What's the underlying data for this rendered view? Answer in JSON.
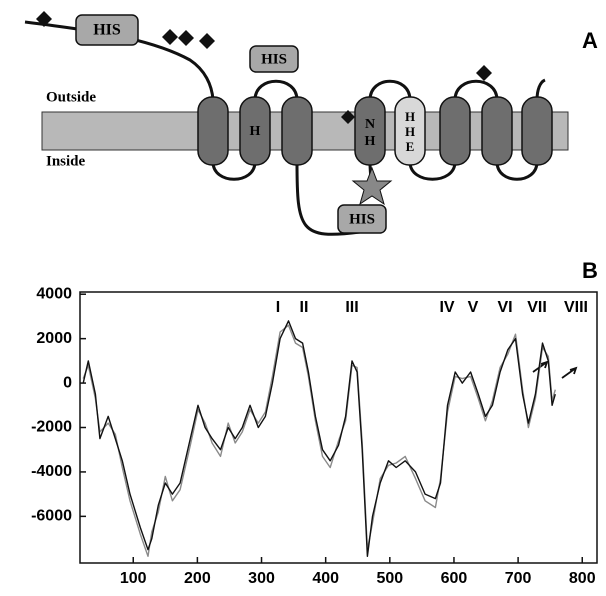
{
  "panel_a": {
    "label": "A",
    "outside": "Outside",
    "inside": "Inside",
    "his_top": "HIS",
    "his_middle": "HIS",
    "his_bottom": "HIS",
    "helix_2": "H",
    "helix_4": [
      "N",
      "H"
    ],
    "helix_5": [
      "H",
      "H",
      "E"
    ]
  },
  "chart_data": {
    "type": "line",
    "label": "B",
    "annotations": [
      "I",
      "II",
      "III",
      "IV",
      "V",
      "VI",
      "VII",
      "VIII"
    ],
    "x": [
      22,
      30,
      41,
      48,
      61,
      72,
      83,
      95,
      111,
      123,
      129,
      139,
      150,
      161,
      173,
      189,
      201,
      212,
      223,
      236,
      248,
      259,
      270,
      282,
      295,
      306,
      317,
      329,
      342,
      353,
      364,
      373,
      384,
      395,
      407,
      420,
      431,
      441,
      449,
      457,
      465,
      473,
      485,
      498,
      510,
      524,
      540,
      555,
      571,
      579,
      590,
      602,
      613,
      626,
      638,
      649,
      660,
      672,
      684,
      696,
      707,
      716,
      727,
      738,
      747,
      753,
      758
    ],
    "series": [
      {
        "color": "#111111",
        "values": [
          0,
          1000,
          -500,
          -2500,
          -1500,
          -2500,
          -3500,
          -5000,
          -6500,
          -7500,
          -7000,
          -5500,
          -4500,
          -5000,
          -4500,
          -2500,
          -1000,
          -2000,
          -2500,
          -3000,
          -2000,
          -2500,
          -2000,
          -1000,
          -2000,
          -1500,
          0,
          2000,
          2800,
          2000,
          1800,
          500,
          -1500,
          -3000,
          -3500,
          -2800,
          -1500,
          1000,
          500,
          -3000,
          -7800,
          -6000,
          -4500,
          -3500,
          -3800,
          -3500,
          -4000,
          -5000,
          -5200,
          -4500,
          -1000,
          500,
          0,
          500,
          -500,
          -1500,
          -1000,
          500,
          1500,
          2000,
          -500,
          -1800,
          -500,
          1800,
          1000,
          -1000,
          -500
        ]
      },
      {
        "color": "#8a8a8a",
        "values": [
          200,
          800,
          -700,
          -2200,
          -1800,
          -2300,
          -3800,
          -5300,
          -6800,
          -7800,
          -6700,
          -5800,
          -4200,
          -5300,
          -4800,
          -2800,
          -1200,
          -1800,
          -2700,
          -3300,
          -1800,
          -2700,
          -2200,
          -1200,
          -1800,
          -1300,
          300,
          2300,
          2600,
          1800,
          1600,
          300,
          -1700,
          -3300,
          -3800,
          -2600,
          -1700,
          800,
          700,
          -2700,
          -7500,
          -6300,
          -4300,
          -3700,
          -3600,
          -3300,
          -4300,
          -5300,
          -5600,
          -4300,
          -1300,
          300,
          200,
          300,
          -700,
          -1700,
          -800,
          700,
          1300,
          2200,
          -300,
          -2000,
          -700,
          1600,
          1200,
          -800,
          -300
        ]
      }
    ],
    "xlim": [
      17,
      823
    ],
    "ylim": [
      -8100,
      4100
    ],
    "xticks": [
      100,
      200,
      300,
      400,
      500,
      600,
      700,
      800
    ],
    "yticks": [
      4000,
      2000,
      0,
      -2000,
      -4000,
      -6000
    ]
  }
}
